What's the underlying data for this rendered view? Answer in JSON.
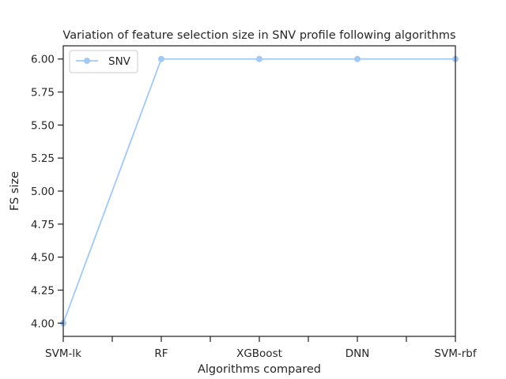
{
  "chart_data": {
    "type": "line",
    "title": "Variation of feature selection size in SNV profile following algorithms",
    "xlabel": "Algorithms compared",
    "ylabel": "FS size",
    "categories": [
      "SVM-lk",
      "RF",
      "XGBoost",
      "DNN",
      "SVM-rbf"
    ],
    "series": [
      {
        "name": "SNV",
        "values": [
          4,
          6,
          6,
          6,
          6
        ],
        "color": "#a1c9f4"
      }
    ],
    "ylim": [
      3.9,
      6.1
    ],
    "yticks": [
      "4.00",
      "4.25",
      "4.50",
      "4.75",
      "5.00",
      "5.25",
      "5.50",
      "5.75",
      "6.00"
    ],
    "grid": false,
    "legend": "upper left"
  }
}
